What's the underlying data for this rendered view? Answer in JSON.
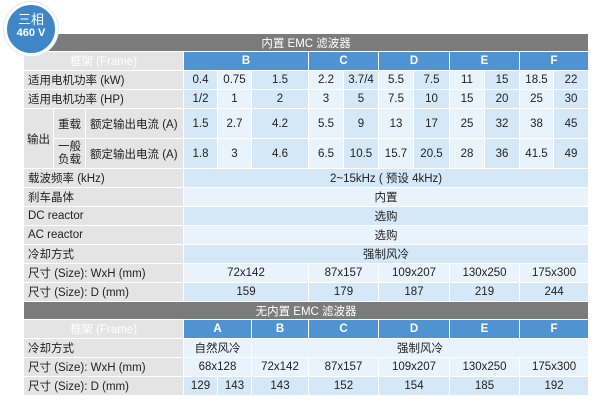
{
  "badge": {
    "line1": "三相",
    "line2": "460 V"
  },
  "colors": {
    "badge": "#3f86c8",
    "section_bar": "#7b7b7b",
    "frame_header": "#4f93d2",
    "label_cell": "#e4e4e4",
    "data_cell_dark": "#d4e8f7",
    "data_cell_light": "#e8f3fc"
  },
  "builtin": {
    "title": "内置 EMC 滤波器",
    "frame_label": "框架 (Frame)",
    "frames": [
      "B",
      "C",
      "D",
      "E",
      "F"
    ],
    "kw": {
      "label": "适用电机功率 (kW)",
      "values": [
        "0.4",
        "0.75",
        "1.5",
        "2.2",
        "3.7/4",
        "5.5",
        "7.5",
        "11",
        "15",
        "18.5",
        "22"
      ]
    },
    "hp": {
      "label": "适用电机功率 (HP)",
      "values": [
        "1/2",
        "1",
        "2",
        "3",
        "5",
        "7.5",
        "10",
        "15",
        "20",
        "25",
        "30"
      ]
    },
    "output": {
      "label": "输出",
      "heavy": {
        "label": "重载",
        "sub": "额定输出电流 (A)",
        "values": [
          "1.5",
          "2.7",
          "4.2",
          "5.5",
          "9",
          "13",
          "17",
          "25",
          "32",
          "38",
          "45"
        ]
      },
      "normal": {
        "label": "一般负载",
        "sub": "额定输出电流 (A)",
        "values": [
          "1.8",
          "3",
          "4.6",
          "6.5",
          "10.5",
          "15.7",
          "20.5",
          "28",
          "36",
          "41.5",
          "49"
        ]
      }
    },
    "carrier": {
      "label": "载波频率 (kHz)",
      "value": "2~15kHz ( 预设 4kHz)"
    },
    "brake": {
      "label": "刹车晶体",
      "value": "内置"
    },
    "dc": {
      "label": "DC reactor",
      "value": "选购"
    },
    "ac": {
      "label": "AC reactor",
      "value": "选购"
    },
    "cooling": {
      "label": "冷却方式",
      "value": "强制风冷"
    },
    "wxh": {
      "label": "尺寸 (Size): WxH (mm)",
      "values": [
        "72x142",
        "87x157",
        "109x207",
        "130x250",
        "175x300"
      ]
    },
    "depth": {
      "label": "尺寸 (Size): D (mm)",
      "values": [
        "159",
        "179",
        "187",
        "219",
        "244"
      ]
    }
  },
  "no_builtin": {
    "title": "无内置 EMC 滤波器",
    "frame_label": "框架 (Frame)",
    "frames": [
      "A",
      "B",
      "C",
      "D",
      "E",
      "F"
    ],
    "cooling": {
      "label": "冷却方式",
      "natural": "自然风冷",
      "forced": "强制风冷"
    },
    "wxh": {
      "label": "尺寸 (Size): WxH (mm)",
      "values": [
        "68x128",
        "72x142",
        "87x157",
        "109x207",
        "130x250",
        "175x300"
      ]
    },
    "depth": {
      "label": "尺寸 (Size): D (mm)",
      "values": [
        "129",
        "143",
        "143",
        "152",
        "154",
        "185",
        "192"
      ]
    }
  }
}
